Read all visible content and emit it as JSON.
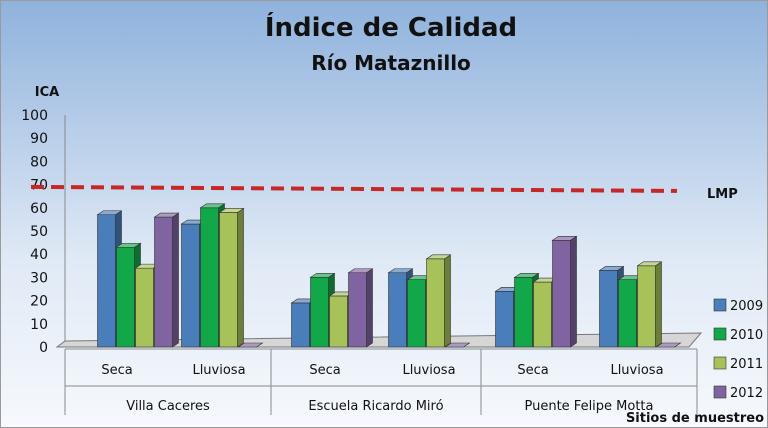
{
  "chart_data": {
    "type": "bar",
    "title": "Índice de Calidad",
    "subtitle": "Río Mataznillo",
    "ylabel": "ICA",
    "xlabel": "Sitios de muestreo",
    "ylim": [
      0,
      100
    ],
    "yticks": [
      "0",
      "10",
      "20",
      "30",
      "40",
      "50",
      "60",
      "70",
      "80",
      "90",
      "100"
    ],
    "groups": [
      {
        "label": "Villa Caceres",
        "categories": [
          "Seca",
          "Lluviosa"
        ]
      },
      {
        "label": "Escuela Ricardo Miró",
        "categories": [
          "Seca",
          "Lluviosa"
        ]
      },
      {
        "label": "Puente Felipe Motta",
        "categories": [
          "Seca",
          "Lluviosa"
        ]
      }
    ],
    "categories": [
      "Seca",
      "Lluviosa",
      "Seca",
      "Lluviosa",
      "Seca",
      "Lluviosa"
    ],
    "series": [
      {
        "name": "2009",
        "color": "#4a7ebb",
        "values": [
          57,
          53,
          19,
          32,
          24,
          33
        ]
      },
      {
        "name": "2010",
        "color": "#12a84a",
        "values": [
          43,
          60,
          30,
          29,
          30,
          29
        ]
      },
      {
        "name": "2011",
        "color": "#a8c25a",
        "values": [
          34,
          58,
          22,
          38,
          28,
          35
        ]
      },
      {
        "name": "2012",
        "color": "#8064a2",
        "values": [
          56,
          0,
          32,
          0,
          46,
          0
        ]
      }
    ],
    "reference_line": {
      "label": "LMP",
      "value": 69,
      "color": "#c62828",
      "style": "dashed"
    },
    "legend_position": "right",
    "grid": false
  }
}
